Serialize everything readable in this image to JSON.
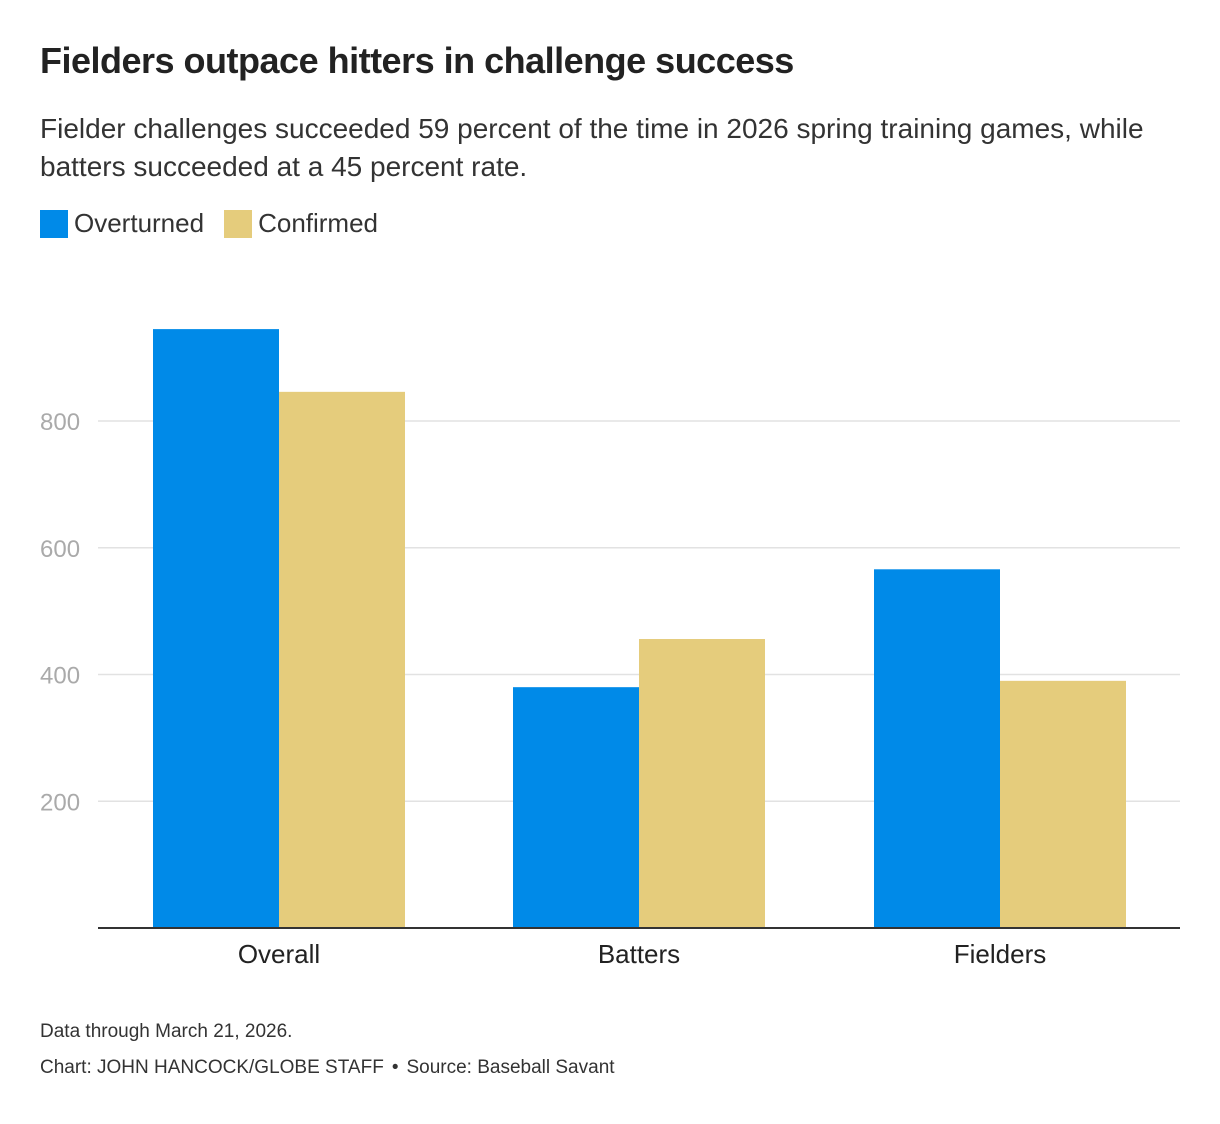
{
  "header": {
    "title": "Fielders outpace hitters in challenge success",
    "subtitle": "Fielder challenges succeeded 59 percent of the time in 2026 spring training games, while batters succeeded at a 45 percent rate."
  },
  "legend": {
    "items": [
      {
        "label": "Overturned",
        "color": "#008ae8"
      },
      {
        "label": "Confirmed",
        "color": "#e5cc7c"
      }
    ]
  },
  "chart_data": {
    "type": "bar",
    "title": "Fielders outpace hitters in challenge success",
    "xlabel": "",
    "ylabel": "",
    "categories": [
      "Overall",
      "Batters",
      "Fielders"
    ],
    "series": [
      {
        "name": "Overturned",
        "color": "#008ae8",
        "values": [
          945,
          380,
          566
        ]
      },
      {
        "name": "Confirmed",
        "color": "#e5cc7c",
        "values": [
          846,
          456,
          390
        ]
      }
    ],
    "yticks": [
      200,
      400,
      600,
      800
    ],
    "ylim": [
      0,
      1000
    ],
    "grid": true,
    "legend_position": "top-left"
  },
  "footer": {
    "note": "Data through March 21, 2026.",
    "credit": "Chart: JOHN HANCOCK/GLOBE STAFF",
    "separator": "•",
    "source": "Source: Baseball Savant"
  }
}
